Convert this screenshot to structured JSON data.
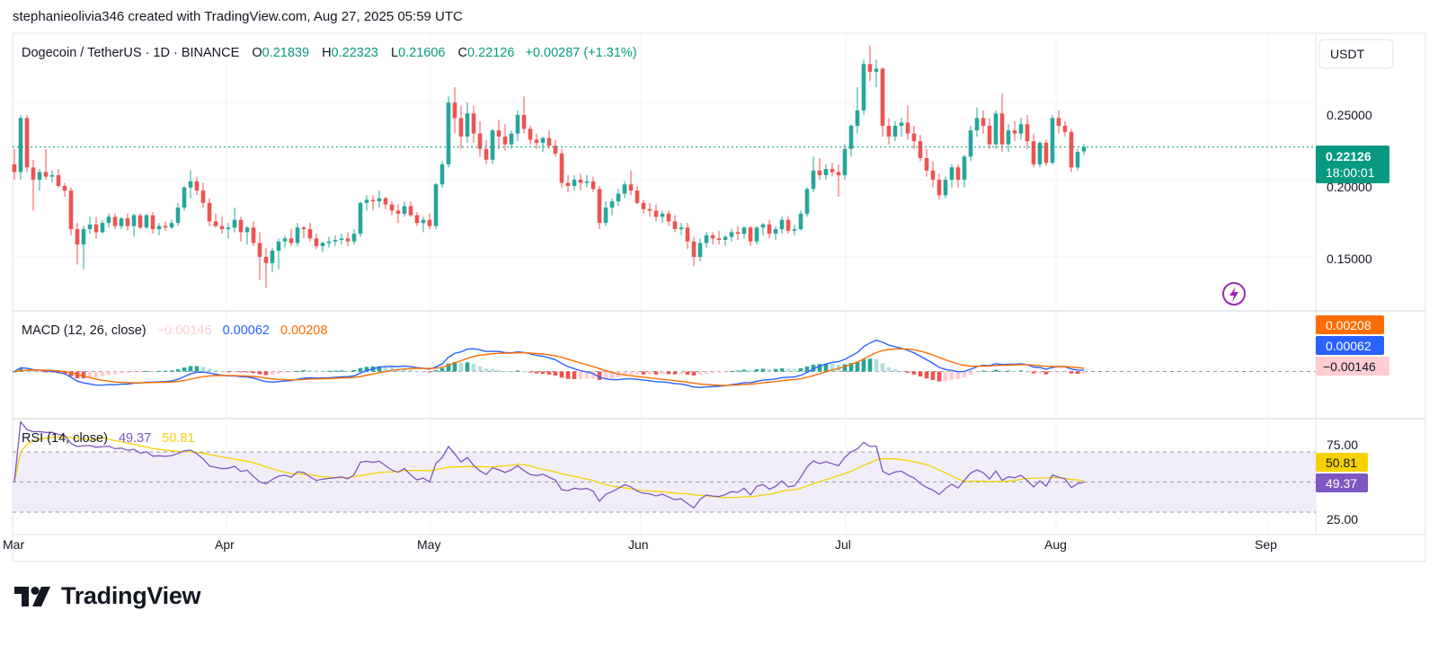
{
  "header": {
    "attribution": "stephanieolivia346 created with TradingView.com, Aug 27, 2025 05:59 UTC"
  },
  "brand": {
    "name": "TradingView",
    "logo_icon": "tradingview-logo-icon"
  },
  "colors": {
    "up": "#26a69a",
    "down": "#ef5350",
    "macd": "#2962ff",
    "signal": "#ff6d00",
    "rsi": "#7e57c2",
    "rsi_ma": "#f5d100",
    "rsi_band": "#ede7f6",
    "last_price": "#089981",
    "hist_up_strong": "#26a69a",
    "hist_up_weak": "#b2dfdb",
    "hist_down_strong": "#ef5350",
    "hist_down_weak": "#ffcdd2"
  },
  "legend": {
    "symbol": "Dogecoin / TetherUS · 1D · BINANCE",
    "o_label": "O",
    "o_value": "0.21839",
    "h_label": "H",
    "h_value": "0.22323",
    "l_label": "L",
    "l_value": "0.21606",
    "c_label": "C",
    "c_value": "0.22126",
    "change": "+0.00287 (+1.31%)"
  },
  "price_axis": {
    "currency": "USDT",
    "labels": [
      "0.25000",
      "0.20000",
      "0.15000"
    ],
    "last_price": "0.22126",
    "countdown": "18:00:01",
    "icon": "lightning-icon"
  },
  "macd_panel": {
    "title": "MACD (12, 26, close)",
    "hist_value": "−0.00146",
    "macd_value": "0.00062",
    "signal_value": "0.00208",
    "badge_signal": "0.00208",
    "badge_macd": "0.00062",
    "badge_hist": "−0.00146"
  },
  "rsi_panel": {
    "title": "RSI (14, close)",
    "rsi_value": "49.37",
    "ma_value": "50.81",
    "axis_labels": [
      "75.00",
      "25.00"
    ],
    "badge_ma": "50.81",
    "badge_rsi": "49.37"
  },
  "time_axis": {
    "labels": [
      "Mar",
      "Apr",
      "May",
      "Jun",
      "Jul",
      "Aug",
      "Sep"
    ]
  },
  "chart_data": {
    "type": "candlestick",
    "title": "Dogecoin / TetherUS · 1D · BINANCE",
    "x_start": "2025-02-28",
    "x_end": "2025-08-27",
    "price_ylim": [
      0.115,
      0.295
    ],
    "candles": [
      [
        0.21,
        0.22,
        0.2,
        0.205
      ],
      [
        0.205,
        0.242,
        0.2,
        0.24
      ],
      [
        0.24,
        0.242,
        0.205,
        0.208
      ],
      [
        0.208,
        0.213,
        0.18,
        0.2
      ],
      [
        0.2,
        0.207,
        0.193,
        0.205
      ],
      [
        0.205,
        0.22,
        0.2,
        0.202
      ],
      [
        0.202,
        0.206,
        0.198,
        0.203
      ],
      [
        0.203,
        0.207,
        0.195,
        0.196
      ],
      [
        0.196,
        0.198,
        0.189,
        0.193
      ],
      [
        0.193,
        0.195,
        0.164,
        0.168
      ],
      [
        0.168,
        0.172,
        0.145,
        0.158
      ],
      [
        0.158,
        0.17,
        0.142,
        0.168
      ],
      [
        0.168,
        0.176,
        0.165,
        0.171
      ],
      [
        0.171,
        0.176,
        0.162,
        0.166
      ],
      [
        0.166,
        0.174,
        0.165,
        0.172
      ],
      [
        0.172,
        0.178,
        0.169,
        0.176
      ],
      [
        0.176,
        0.178,
        0.168,
        0.17
      ],
      [
        0.17,
        0.176,
        0.168,
        0.175
      ],
      [
        0.175,
        0.178,
        0.167,
        0.17
      ],
      [
        0.17,
        0.178,
        0.163,
        0.177
      ],
      [
        0.177,
        0.178,
        0.168,
        0.169
      ],
      [
        0.169,
        0.178,
        0.168,
        0.177
      ],
      [
        0.177,
        0.179,
        0.165,
        0.168
      ],
      [
        0.168,
        0.172,
        0.164,
        0.17
      ],
      [
        0.17,
        0.173,
        0.167,
        0.169
      ],
      [
        0.169,
        0.174,
        0.168,
        0.172
      ],
      [
        0.172,
        0.185,
        0.17,
        0.182
      ],
      [
        0.182,
        0.196,
        0.18,
        0.195
      ],
      [
        0.195,
        0.206,
        0.188,
        0.199
      ],
      [
        0.199,
        0.202,
        0.19,
        0.193
      ],
      [
        0.193,
        0.198,
        0.182,
        0.185
      ],
      [
        0.185,
        0.188,
        0.17,
        0.173
      ],
      [
        0.173,
        0.178,
        0.169,
        0.17
      ],
      [
        0.17,
        0.176,
        0.165,
        0.168
      ],
      [
        0.168,
        0.172,
        0.162,
        0.169
      ],
      [
        0.169,
        0.182,
        0.166,
        0.174
      ],
      [
        0.174,
        0.176,
        0.16,
        0.166
      ],
      [
        0.166,
        0.17,
        0.158,
        0.169
      ],
      [
        0.169,
        0.173,
        0.157,
        0.159
      ],
      [
        0.159,
        0.166,
        0.135,
        0.15
      ],
      [
        0.15,
        0.156,
        0.13,
        0.146
      ],
      [
        0.146,
        0.156,
        0.14,
        0.154
      ],
      [
        0.154,
        0.162,
        0.142,
        0.16
      ],
      [
        0.16,
        0.164,
        0.156,
        0.162
      ],
      [
        0.162,
        0.168,
        0.157,
        0.159
      ],
      [
        0.159,
        0.172,
        0.157,
        0.169
      ],
      [
        0.169,
        0.17,
        0.162,
        0.168
      ],
      [
        0.168,
        0.172,
        0.16,
        0.162
      ],
      [
        0.162,
        0.165,
        0.155,
        0.157
      ],
      [
        0.157,
        0.16,
        0.153,
        0.159
      ],
      [
        0.159,
        0.163,
        0.156,
        0.16
      ],
      [
        0.16,
        0.164,
        0.157,
        0.161
      ],
      [
        0.161,
        0.165,
        0.158,
        0.162
      ],
      [
        0.162,
        0.166,
        0.157,
        0.16
      ],
      [
        0.16,
        0.168,
        0.158,
        0.165
      ],
      [
        0.165,
        0.186,
        0.163,
        0.185
      ],
      [
        0.185,
        0.19,
        0.18,
        0.187
      ],
      [
        0.187,
        0.19,
        0.18,
        0.186
      ],
      [
        0.186,
        0.193,
        0.182,
        0.188
      ],
      [
        0.188,
        0.189,
        0.181,
        0.184
      ],
      [
        0.184,
        0.186,
        0.177,
        0.18
      ],
      [
        0.18,
        0.184,
        0.172,
        0.178
      ],
      [
        0.178,
        0.186,
        0.176,
        0.183
      ],
      [
        0.183,
        0.186,
        0.176,
        0.177
      ],
      [
        0.177,
        0.179,
        0.17,
        0.172
      ],
      [
        0.172,
        0.176,
        0.166,
        0.174
      ],
      [
        0.174,
        0.178,
        0.168,
        0.17
      ],
      [
        0.17,
        0.198,
        0.168,
        0.197
      ],
      [
        0.197,
        0.212,
        0.195,
        0.21
      ],
      [
        0.21,
        0.254,
        0.208,
        0.25
      ],
      [
        0.25,
        0.26,
        0.23,
        0.24
      ],
      [
        0.24,
        0.248,
        0.22,
        0.228
      ],
      [
        0.228,
        0.25,
        0.224,
        0.243
      ],
      [
        0.243,
        0.248,
        0.224,
        0.23
      ],
      [
        0.23,
        0.238,
        0.215,
        0.22
      ],
      [
        0.22,
        0.226,
        0.21,
        0.213
      ],
      [
        0.213,
        0.233,
        0.21,
        0.232
      ],
      [
        0.232,
        0.239,
        0.22,
        0.228
      ],
      [
        0.228,
        0.236,
        0.219,
        0.223
      ],
      [
        0.223,
        0.232,
        0.22,
        0.23
      ],
      [
        0.23,
        0.245,
        0.225,
        0.242
      ],
      [
        0.242,
        0.254,
        0.23,
        0.233
      ],
      [
        0.233,
        0.235,
        0.223,
        0.226
      ],
      [
        0.226,
        0.23,
        0.22,
        0.224
      ],
      [
        0.224,
        0.228,
        0.218,
        0.227
      ],
      [
        0.227,
        0.232,
        0.22,
        0.222
      ],
      [
        0.222,
        0.226,
        0.215,
        0.217
      ],
      [
        0.217,
        0.22,
        0.195,
        0.198
      ],
      [
        0.198,
        0.203,
        0.192,
        0.196
      ],
      [
        0.196,
        0.203,
        0.193,
        0.2
      ],
      [
        0.2,
        0.204,
        0.193,
        0.198
      ],
      [
        0.198,
        0.203,
        0.195,
        0.199
      ],
      [
        0.199,
        0.202,
        0.192,
        0.194
      ],
      [
        0.194,
        0.196,
        0.168,
        0.172
      ],
      [
        0.172,
        0.186,
        0.17,
        0.182
      ],
      [
        0.182,
        0.188,
        0.177,
        0.186
      ],
      [
        0.186,
        0.194,
        0.183,
        0.191
      ],
      [
        0.191,
        0.199,
        0.188,
        0.197
      ],
      [
        0.197,
        0.206,
        0.19,
        0.193
      ],
      [
        0.193,
        0.196,
        0.184,
        0.185
      ],
      [
        0.185,
        0.187,
        0.178,
        0.181
      ],
      [
        0.181,
        0.185,
        0.176,
        0.18
      ],
      [
        0.18,
        0.184,
        0.173,
        0.176
      ],
      [
        0.176,
        0.18,
        0.172,
        0.178
      ],
      [
        0.178,
        0.18,
        0.17,
        0.173
      ],
      [
        0.173,
        0.177,
        0.166,
        0.168
      ],
      [
        0.168,
        0.172,
        0.164,
        0.169
      ],
      [
        0.169,
        0.172,
        0.155,
        0.16
      ],
      [
        0.16,
        0.163,
        0.144,
        0.15
      ],
      [
        0.15,
        0.162,
        0.147,
        0.159
      ],
      [
        0.159,
        0.166,
        0.156,
        0.164
      ],
      [
        0.164,
        0.166,
        0.158,
        0.162
      ],
      [
        0.162,
        0.167,
        0.158,
        0.161
      ],
      [
        0.161,
        0.164,
        0.157,
        0.163
      ],
      [
        0.163,
        0.168,
        0.16,
        0.166
      ],
      [
        0.166,
        0.17,
        0.161,
        0.165
      ],
      [
        0.165,
        0.17,
        0.162,
        0.169
      ],
      [
        0.169,
        0.17,
        0.157,
        0.16
      ],
      [
        0.16,
        0.17,
        0.158,
        0.169
      ],
      [
        0.169,
        0.172,
        0.164,
        0.171
      ],
      [
        0.171,
        0.174,
        0.162,
        0.165
      ],
      [
        0.165,
        0.17,
        0.161,
        0.168
      ],
      [
        0.168,
        0.176,
        0.165,
        0.174
      ],
      [
        0.174,
        0.176,
        0.165,
        0.167
      ],
      [
        0.167,
        0.171,
        0.164,
        0.168
      ],
      [
        0.168,
        0.18,
        0.167,
        0.178
      ],
      [
        0.178,
        0.195,
        0.176,
        0.194
      ],
      [
        0.194,
        0.215,
        0.192,
        0.206
      ],
      [
        0.206,
        0.214,
        0.2,
        0.203
      ],
      [
        0.203,
        0.21,
        0.2,
        0.207
      ],
      [
        0.207,
        0.211,
        0.202,
        0.205
      ],
      [
        0.205,
        0.21,
        0.189,
        0.203
      ],
      [
        0.203,
        0.223,
        0.2,
        0.22
      ],
      [
        0.22,
        0.236,
        0.215,
        0.235
      ],
      [
        0.235,
        0.26,
        0.23,
        0.245
      ],
      [
        0.245,
        0.278,
        0.242,
        0.275
      ],
      [
        0.275,
        0.287,
        0.264,
        0.27
      ],
      [
        0.27,
        0.278,
        0.26,
        0.272
      ],
      [
        0.272,
        0.273,
        0.228,
        0.235
      ],
      [
        0.235,
        0.24,
        0.223,
        0.228
      ],
      [
        0.228,
        0.238,
        0.225,
        0.235
      ],
      [
        0.235,
        0.24,
        0.228,
        0.237
      ],
      [
        0.237,
        0.248,
        0.226,
        0.23
      ],
      [
        0.23,
        0.235,
        0.22,
        0.225
      ],
      [
        0.225,
        0.229,
        0.212,
        0.214
      ],
      [
        0.214,
        0.22,
        0.202,
        0.206
      ],
      [
        0.206,
        0.212,
        0.195,
        0.2
      ],
      [
        0.2,
        0.204,
        0.187,
        0.19
      ],
      [
        0.19,
        0.202,
        0.188,
        0.2
      ],
      [
        0.2,
        0.21,
        0.195,
        0.208
      ],
      [
        0.208,
        0.21,
        0.195,
        0.2
      ],
      [
        0.2,
        0.216,
        0.195,
        0.215
      ],
      [
        0.215,
        0.235,
        0.212,
        0.232
      ],
      [
        0.232,
        0.247,
        0.228,
        0.24
      ],
      [
        0.24,
        0.245,
        0.23,
        0.235
      ],
      [
        0.235,
        0.24,
        0.22,
        0.223
      ],
      [
        0.223,
        0.245,
        0.22,
        0.243
      ],
      [
        0.243,
        0.256,
        0.218,
        0.223
      ],
      [
        0.223,
        0.236,
        0.218,
        0.232
      ],
      [
        0.232,
        0.238,
        0.225,
        0.23
      ],
      [
        0.23,
        0.24,
        0.226,
        0.236
      ],
      [
        0.236,
        0.242,
        0.22,
        0.225
      ],
      [
        0.225,
        0.23,
        0.208,
        0.21
      ],
      [
        0.21,
        0.225,
        0.208,
        0.224
      ],
      [
        0.224,
        0.226,
        0.209,
        0.211
      ],
      [
        0.211,
        0.242,
        0.21,
        0.24
      ],
      [
        0.24,
        0.245,
        0.23,
        0.235
      ],
      [
        0.235,
        0.238,
        0.228,
        0.231
      ],
      [
        0.231,
        0.233,
        0.205,
        0.208
      ],
      [
        0.208,
        0.22,
        0.206,
        0.218
      ],
      [
        0.2184,
        0.2232,
        0.2161,
        0.2213
      ]
    ],
    "macd_ylim": [
      -0.035,
      0.045
    ],
    "rsi_ylim": [
      0,
      100
    ],
    "rsi_levels": [
      75,
      50,
      25
    ],
    "last_price": 0.22126,
    "last_macd": 0.00062,
    "last_signal": 0.00208,
    "last_hist": -0.00146,
    "last_rsi": 49.37,
    "last_rsi_ma": 50.81
  }
}
